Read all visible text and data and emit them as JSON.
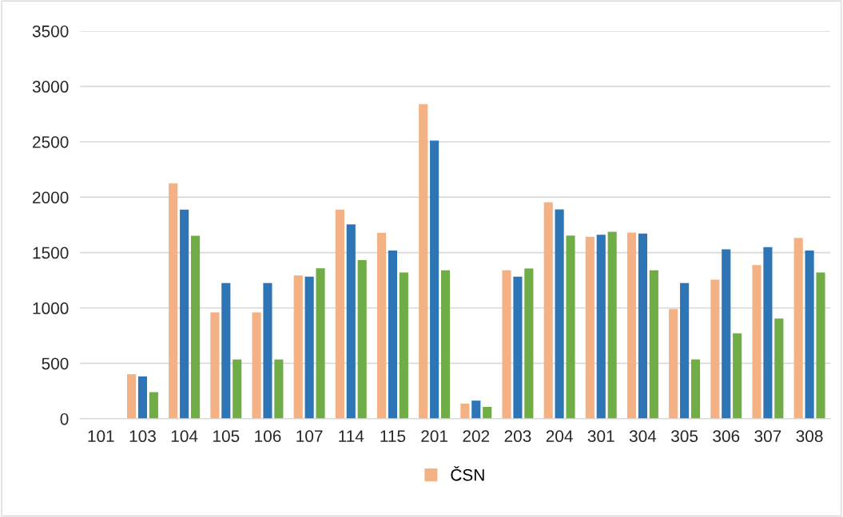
{
  "chart_data": {
    "type": "bar",
    "categories": [
      "101",
      "103",
      "104",
      "105",
      "106",
      "107",
      "114",
      "115",
      "201",
      "202",
      "203",
      "204",
      "301",
      "304",
      "305",
      "306",
      "307",
      "308"
    ],
    "series": [
      {
        "name": "ČSN",
        "color": "#f4b183",
        "values": [
          0,
          402,
          2126,
          961,
          961,
          1293,
          1888,
          1679,
          2841,
          137,
          1340,
          1955,
          1643,
          1681,
          991,
          1255,
          1387,
          1633
        ]
      },
      {
        "color": "#2e75b6",
        "values": [
          0,
          382,
          1888,
          1225,
          1225,
          1283,
          1755,
          1519,
          2510,
          164,
          1282,
          1890,
          1661,
          1671,
          1225,
          1529,
          1549,
          1519
        ]
      },
      {
        "color": "#70ad47",
        "values": [
          0,
          241,
          1652,
          535,
          535,
          1358,
          1433,
          1320,
          1340,
          107,
          1357,
          1653,
          1688,
          1340,
          535,
          772,
          904,
          1320
        ]
      }
    ],
    "ylim": [
      0,
      3500
    ],
    "yticks": [
      0,
      500,
      1000,
      1500,
      2000,
      2500,
      3000,
      3500
    ],
    "grid": "y",
    "legend": "bottom"
  }
}
